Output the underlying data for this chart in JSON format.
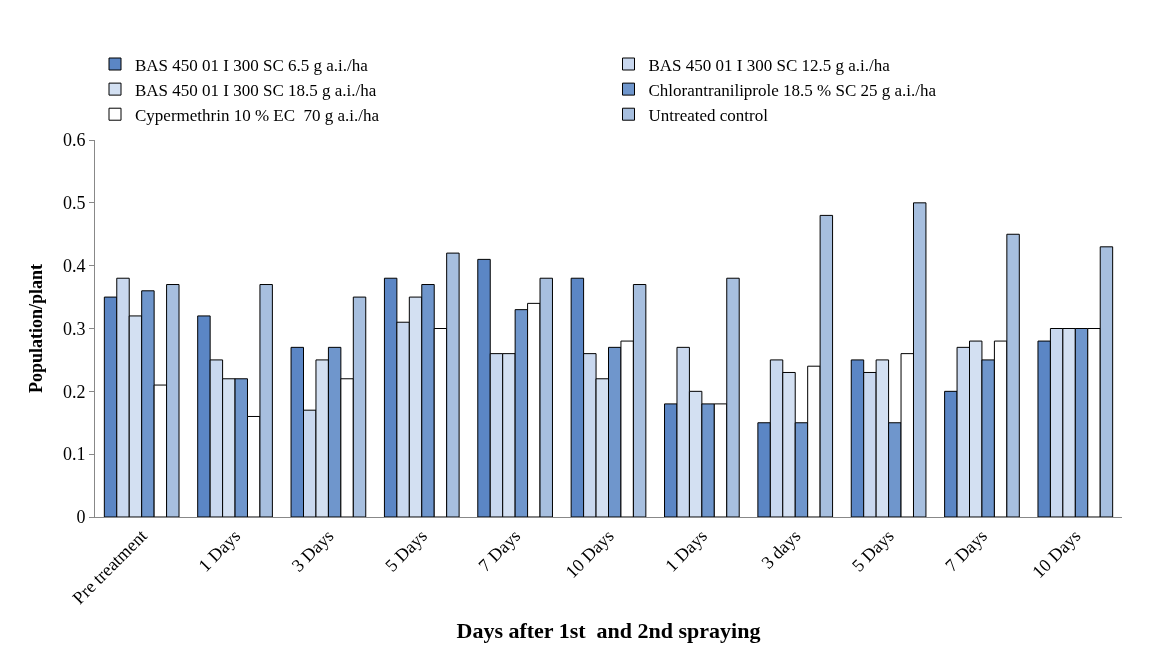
{
  "chart_data": {
    "type": "bar",
    "xlabel": "Days after 1st  and 2nd spraying",
    "ylabel": "Population/plant",
    "categories": [
      "Pre treatment",
      "1 Days",
      "3 Days",
      "5 Days",
      "7 Days",
      "10 Days",
      "1 Days",
      "3 days",
      "5 Days",
      "7 Days",
      "10 Days"
    ],
    "series": [
      {
        "name": "BAS 450 01 I 300 SC 6.5 g a.i./ha",
        "color": "#5b86c5",
        "values": [
          0.35,
          0.32,
          0.27,
          0.38,
          0.41,
          0.38,
          0.18,
          0.15,
          0.25,
          0.2,
          0.28
        ]
      },
      {
        "name": "BAS 450 01 I 300 SC 12.5 g a.i./ha",
        "color": "#c9d8ef",
        "values": [
          0.38,
          0.25,
          0.17,
          0.31,
          0.26,
          0.26,
          0.27,
          0.25,
          0.23,
          0.27,
          0.3
        ]
      },
      {
        "name": "BAS 450 01 I 300 SC 18.5 g a.i./ha",
        "color": "#d3e0f2",
        "values": [
          0.32,
          0.22,
          0.25,
          0.35,
          0.26,
          0.22,
          0.2,
          0.23,
          0.25,
          0.28,
          0.3
        ]
      },
      {
        "name": "Chlorantraniliprole 18.5 % SC 25 g a.i./ha",
        "color": "#6f96cc",
        "values": [
          0.36,
          0.22,
          0.27,
          0.37,
          0.33,
          0.27,
          0.18,
          0.15,
          0.15,
          0.25,
          0.3
        ]
      },
      {
        "name": "Cypermethrin 10 % EC  70 g a.i./ha",
        "color": "#ffffff",
        "values": [
          0.21,
          0.16,
          0.22,
          0.3,
          0.34,
          0.28,
          0.18,
          0.24,
          0.26,
          0.28,
          0.3
        ]
      },
      {
        "name": "Untreated control",
        "color": "#a7bfdf",
        "values": [
          0.37,
          0.37,
          0.35,
          0.42,
          0.38,
          0.37,
          0.38,
          0.48,
          0.5,
          0.45,
          0.43
        ]
      }
    ],
    "ylim": [
      0,
      0.6
    ],
    "yticks": [
      {
        "value": 0,
        "label": "0"
      },
      0.1,
      0.2,
      0.3,
      0.4,
      0.5,
      0.6
    ],
    "legend": "top"
  }
}
